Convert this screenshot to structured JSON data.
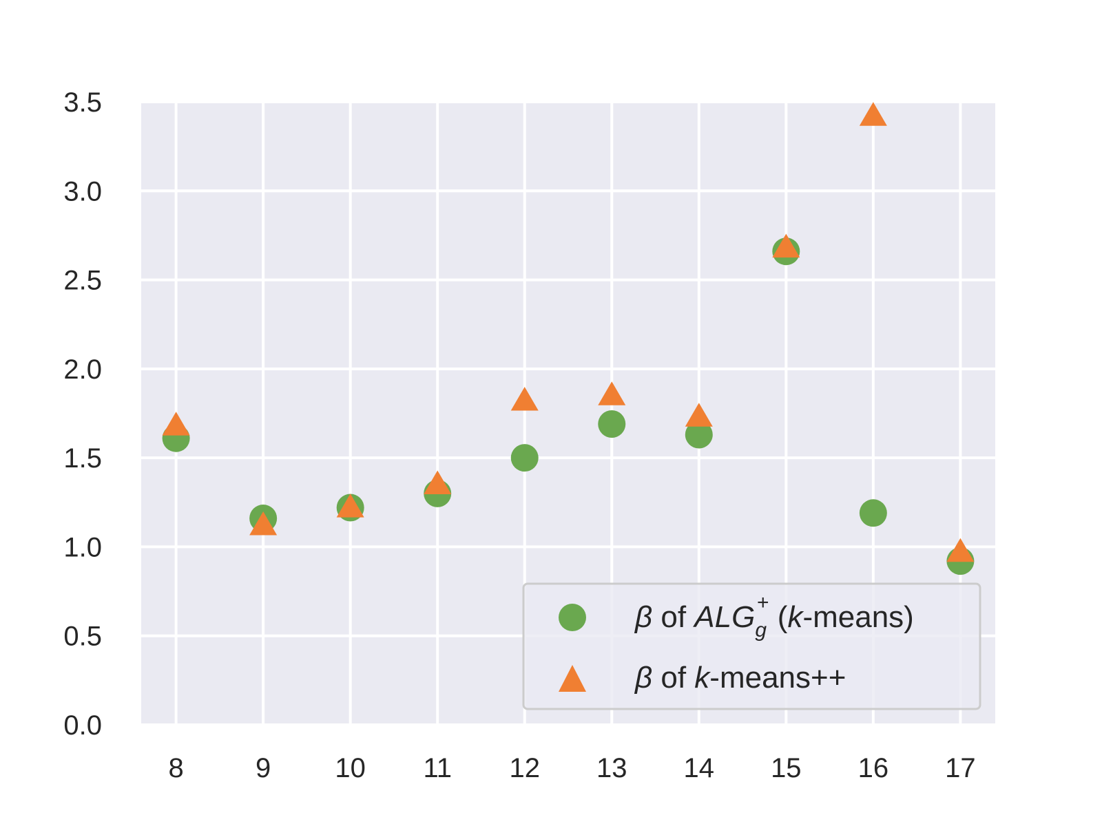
{
  "chart_data": {
    "type": "scatter",
    "title": "",
    "xlabel": "",
    "ylabel": "",
    "x": [
      8,
      9,
      10,
      11,
      12,
      13,
      14,
      15,
      16,
      17
    ],
    "x_ticks": [
      "8",
      "9",
      "10",
      "11",
      "12",
      "13",
      "14",
      "15",
      "16",
      "17"
    ],
    "y_ticks": [
      "0.0",
      "0.5",
      "1.0",
      "1.5",
      "2.0",
      "2.5",
      "3.0",
      "3.5"
    ],
    "xlim": [
      7.6,
      17.4
    ],
    "ylim": [
      0.0,
      3.5
    ],
    "grid": true,
    "legend_position": "lower-right",
    "background_color": "#eaeaf2",
    "series": [
      {
        "name": "β of ALGg+ (k-means)",
        "label_parts": {
          "beta": "β",
          "of": " of ",
          "alg": "ALG",
          "sub": "g",
          "sup": "+",
          "paren_open": " (",
          "k": "k",
          "rest": "-means)"
        },
        "marker": "circle",
        "color": "#6aa84f",
        "values": [
          1.61,
          1.16,
          1.22,
          1.3,
          1.5,
          1.69,
          1.63,
          2.66,
          1.19,
          0.92
        ]
      },
      {
        "name": "β of k-means++",
        "label_parts": {
          "beta": "β",
          "of": " of ",
          "k": "k",
          "rest": "-means++"
        },
        "marker": "triangle",
        "color": "#f07f32",
        "values": [
          1.67,
          1.11,
          1.21,
          1.34,
          1.81,
          1.84,
          1.72,
          2.67,
          3.41,
          0.96
        ]
      }
    ]
  }
}
